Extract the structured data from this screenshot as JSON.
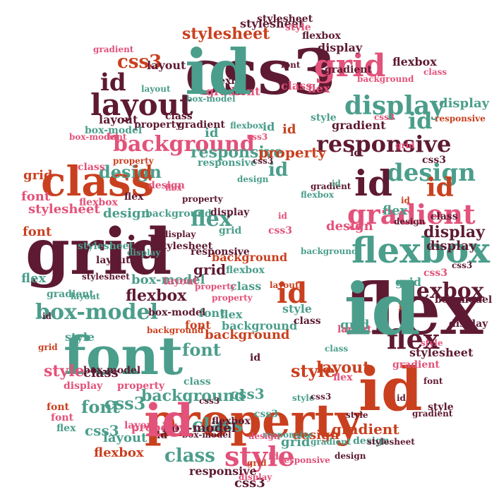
{
  "palette": {
    "maroon": "#5e1a32",
    "teal": "#4b9e8b",
    "orange": "#c9401f",
    "pink": "#e2527a",
    "dark": "#2b1d27"
  },
  "words": [
    {
      "text": "css3",
      "color": "maroon"
    },
    {
      "text": "property",
      "color": "orange"
    },
    {
      "text": "flex",
      "color": "maroon"
    },
    {
      "text": "grid",
      "color": "maroon"
    },
    {
      "text": "font",
      "color": "teal"
    },
    {
      "text": "id",
      "color": "orange"
    },
    {
      "text": "flexbox",
      "color": "teal"
    },
    {
      "text": "class",
      "color": "orange"
    },
    {
      "text": "layout",
      "color": "maroon"
    },
    {
      "text": "responsive",
      "color": "maroon"
    },
    {
      "text": "display",
      "color": "teal"
    },
    {
      "text": "gradient",
      "color": "pink"
    },
    {
      "text": "background",
      "color": "pink"
    },
    {
      "text": "box-model",
      "color": "teal"
    },
    {
      "text": "stylesheet",
      "color": "orange"
    },
    {
      "text": "design",
      "color": "teal"
    },
    {
      "text": "style",
      "color": "pink"
    },
    {
      "text": "grid",
      "color": "pink"
    },
    {
      "text": "id",
      "color": "maroon"
    },
    {
      "text": "id",
      "color": "maroon"
    },
    {
      "text": "id",
      "color": "maroon"
    },
    {
      "text": "id",
      "color": "orange"
    },
    {
      "text": "id",
      "color": "orange"
    },
    {
      "text": "id",
      "color": "teal"
    },
    {
      "text": "design",
      "color": "teal"
    },
    {
      "text": "flexbox",
      "color": "maroon"
    },
    {
      "text": "flexbox",
      "color": "maroon"
    },
    {
      "text": "flex",
      "color": "maroon"
    },
    {
      "text": "flex",
      "color": "teal"
    },
    {
      "text": "style",
      "color": "pink"
    },
    {
      "text": "class",
      "color": "teal"
    },
    {
      "text": "css3",
      "color": "orange"
    },
    {
      "text": "css3",
      "color": "teal"
    },
    {
      "text": "font",
      "color": "teal"
    },
    {
      "text": "font",
      "color": "teal"
    },
    {
      "text": "box-model",
      "color": "maroon"
    },
    {
      "text": "background",
      "color": "teal"
    },
    {
      "text": "background",
      "color": "orange"
    },
    {
      "text": "layout",
      "color": "orange"
    },
    {
      "text": "gradient",
      "color": "orange"
    },
    {
      "text": "responsive",
      "color": "teal"
    },
    {
      "text": "property",
      "color": "orange"
    },
    {
      "text": "stylesheet",
      "color": "maroon"
    },
    {
      "text": "display",
      "color": "maroon"
    },
    {
      "text": "design",
      "color": "orange"
    },
    {
      "text": "class",
      "color": "teal"
    },
    {
      "text": "flexbox",
      "color": "orange"
    },
    {
      "text": "grid",
      "color": "teal"
    },
    {
      "text": "css3",
      "color": "maroon"
    },
    {
      "text": "style",
      "color": "teal"
    },
    {
      "text": "style",
      "color": "orange"
    },
    {
      "text": "grid",
      "color": "orange"
    },
    {
      "text": "flex",
      "color": "teal"
    },
    {
      "text": "font",
      "color": "orange"
    },
    {
      "text": "class",
      "color": "maroon"
    },
    {
      "text": "box-model",
      "color": "teal"
    },
    {
      "text": "background",
      "color": "orange"
    },
    {
      "text": "display",
      "color": "maroon"
    },
    {
      "text": "flex",
      "color": "teal"
    },
    {
      "text": "property",
      "color": "pink"
    },
    {
      "text": "design",
      "color": "teal"
    },
    {
      "text": "gradient",
      "color": "pink"
    },
    {
      "text": "layout",
      "color": "maroon"
    },
    {
      "text": "css3",
      "color": "teal"
    },
    {
      "text": "stylesheet",
      "color": "pink"
    },
    {
      "text": "stylesheet",
      "color": "maroon"
    },
    {
      "text": "responsive",
      "color": "maroon"
    },
    {
      "text": "flexbox",
      "color": "maroon"
    },
    {
      "text": "id",
      "color": "teal"
    },
    {
      "text": "id",
      "color": "orange"
    },
    {
      "text": "id",
      "color": "orange"
    },
    {
      "text": "font",
      "color": "pink"
    },
    {
      "text": "grid",
      "color": "maroon"
    },
    {
      "text": "class",
      "color": "teal"
    },
    {
      "text": "flex",
      "color": "teal"
    },
    {
      "text": "css3",
      "color": "teal"
    },
    {
      "text": "id",
      "color": "orange"
    },
    {
      "text": "id",
      "color": "teal"
    },
    {
      "text": "design",
      "color": "pink"
    },
    {
      "text": "flex",
      "color": "pink"
    },
    {
      "text": "display",
      "color": "teal"
    },
    {
      "text": "display",
      "color": "maroon"
    },
    {
      "text": "font",
      "color": "teal"
    },
    {
      "text": "font",
      "color": "orange"
    },
    {
      "text": "style",
      "color": "teal"
    },
    {
      "text": "gradient",
      "color": "maroon"
    },
    {
      "text": "class",
      "color": "pink"
    },
    {
      "text": "grid",
      "color": "teal"
    },
    {
      "text": "layout",
      "color": "teal"
    },
    {
      "text": "property",
      "color": "maroon"
    },
    {
      "text": "css3",
      "color": "maroon"
    },
    {
      "text": "background",
      "color": "teal"
    },
    {
      "text": "box-model",
      "color": "maroon"
    },
    {
      "text": "flexbox",
      "color": "maroon"
    },
    {
      "text": "flexbox",
      "color": "maroon"
    },
    {
      "text": "css3",
      "color": "teal"
    },
    {
      "text": "class",
      "color": "maroon"
    },
    {
      "text": "grid",
      "color": "teal"
    },
    {
      "text": "layout",
      "color": "maroon"
    },
    {
      "text": "stylesheet",
      "color": "maroon"
    },
    {
      "text": "gradient",
      "color": "maroon"
    },
    {
      "text": "id",
      "color": "teal"
    },
    {
      "text": "display",
      "color": "maroon"
    },
    {
      "text": "style",
      "color": "pink"
    },
    {
      "text": "class",
      "color": "pink"
    },
    {
      "text": "font",
      "color": "orange"
    },
    {
      "text": "css3",
      "color": "pink"
    },
    {
      "text": "responsive",
      "color": "maroon"
    },
    {
      "text": "layout",
      "color": "pink"
    },
    {
      "text": "property",
      "color": "pink"
    },
    {
      "text": "display",
      "color": "pink"
    },
    {
      "text": "font",
      "color": "pink"
    },
    {
      "text": "class",
      "color": "maroon"
    },
    {
      "text": "flexbox",
      "color": "pink"
    },
    {
      "text": "design",
      "color": "teal"
    },
    {
      "text": "stylesheet",
      "color": "teal"
    },
    {
      "text": "box-model",
      "color": "maroon"
    },
    {
      "text": "style",
      "color": "teal"
    },
    {
      "text": "id",
      "color": "maroon"
    },
    {
      "text": "responsive",
      "color": "teal"
    },
    {
      "text": "design",
      "color": "pink"
    },
    {
      "text": "layout",
      "color": "pink"
    },
    {
      "text": "background",
      "color": "teal"
    },
    {
      "text": "id",
      "color": "pink"
    },
    {
      "text": "gradient",
      "color": "teal"
    },
    {
      "text": "flex",
      "color": "pink"
    },
    {
      "text": "css3",
      "color": "pink"
    },
    {
      "text": "style",
      "color": "maroon"
    },
    {
      "text": "display",
      "color": "pink"
    },
    {
      "text": "grid",
      "color": "teal"
    },
    {
      "text": "box-model",
      "color": "teal"
    },
    {
      "text": "flexbox",
      "color": "teal"
    },
    {
      "text": "gradient",
      "color": "pink"
    },
    {
      "text": "id",
      "color": "maroon"
    },
    {
      "text": "responsive",
      "color": "pink"
    },
    {
      "text": "id",
      "color": "maroon"
    },
    {
      "text": "box-model",
      "color": "maroon"
    },
    {
      "text": "layout",
      "color": "maroon"
    },
    {
      "text": "stylesheet",
      "color": "maroon"
    },
    {
      "text": "gradient",
      "color": "maroon"
    },
    {
      "text": "design",
      "color": "maroon"
    },
    {
      "text": "flex",
      "color": "maroon"
    },
    {
      "text": "style",
      "color": "pink"
    },
    {
      "text": "class",
      "color": "maroon"
    },
    {
      "text": "css3",
      "color": "maroon"
    },
    {
      "text": "display",
      "color": "maroon"
    },
    {
      "text": "property",
      "color": "maroon"
    },
    {
      "text": "gradient",
      "color": "teal"
    },
    {
      "text": "font",
      "color": "pink"
    },
    {
      "text": "flexbox",
      "color": "teal"
    },
    {
      "text": "class",
      "color": "teal"
    },
    {
      "text": "grid",
      "color": "pink"
    },
    {
      "text": "id",
      "color": "maroon"
    },
    {
      "text": "box-model",
      "color": "pink"
    },
    {
      "text": "layout",
      "color": "pink"
    },
    {
      "text": "background",
      "color": "teal"
    },
    {
      "text": "flexbox",
      "color": "maroon"
    },
    {
      "text": "style",
      "color": "teal"
    },
    {
      "text": "design",
      "color": "teal"
    },
    {
      "text": "css3",
      "color": "pink"
    },
    {
      "text": "responsive",
      "color": "orange"
    },
    {
      "text": "property",
      "color": "pink"
    },
    {
      "text": "gradient",
      "color": "maroon"
    },
    {
      "text": "layout",
      "color": "teal"
    },
    {
      "text": "stylesheet",
      "color": "maroon"
    },
    {
      "text": "display",
      "color": "teal"
    },
    {
      "text": "id",
      "color": "orange"
    },
    {
      "text": "css3",
      "color": "maroon"
    },
    {
      "text": "flex",
      "color": "teal"
    },
    {
      "text": "design",
      "color": "maroon"
    },
    {
      "text": "class",
      "color": "teal"
    },
    {
      "text": "font",
      "color": "maroon"
    },
    {
      "text": "grid",
      "color": "orange"
    },
    {
      "text": "css3",
      "color": "maroon"
    },
    {
      "text": "box-model",
      "color": "maroon"
    },
    {
      "text": "property",
      "color": "pink"
    },
    {
      "text": "layout",
      "color": "teal"
    },
    {
      "text": "flexbox",
      "color": "teal"
    },
    {
      "text": "gradient",
      "color": "maroon"
    },
    {
      "text": "responsive",
      "color": "teal"
    },
    {
      "text": "background",
      "color": "orange"
    },
    {
      "text": "stylesheet",
      "color": "maroon"
    },
    {
      "text": "css3",
      "color": "pink"
    },
    {
      "text": "id",
      "color": "pink"
    },
    {
      "text": "style",
      "color": "maroon"
    },
    {
      "text": "grid",
      "color": "orange"
    },
    {
      "text": "property",
      "color": "orange"
    },
    {
      "text": "design",
      "color": "pink"
    },
    {
      "text": "display",
      "color": "maroon"
    },
    {
      "text": "class",
      "color": "pink"
    },
    {
      "text": "gradient",
      "color": "pink"
    },
    {
      "text": "flex",
      "color": "pink"
    },
    {
      "text": "box-model",
      "color": "teal"
    },
    {
      "text": "font",
      "color": "maroon"
    },
    {
      "text": "id",
      "color": "maroon"
    },
    {
      "text": "background",
      "color": "pink"
    },
    {
      "text": "css3",
      "color": "maroon"
    },
    {
      "text": "layout",
      "color": "orange"
    },
    {
      "text": "id",
      "color": "teal"
    },
    {
      "text": "id",
      "color": "teal"
    },
    {
      "text": "id",
      "color": "pink"
    },
    {
      "text": "id",
      "color": "teal"
    }
  ]
}
